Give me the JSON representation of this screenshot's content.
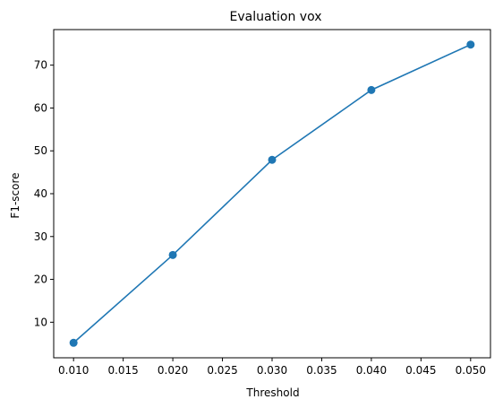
{
  "chart_data": {
    "type": "line",
    "title": "Evaluation vox",
    "xlabel": "Threshold",
    "ylabel": "F1-score",
    "x": [
      0.01,
      0.02,
      0.03,
      0.04,
      0.05
    ],
    "series": [
      {
        "values": [
          5.2,
          25.7,
          47.9,
          64.2,
          74.8
        ],
        "color": "#1f77b4",
        "marker": "circle"
      }
    ],
    "xlim": [
      0.008,
      0.052
    ],
    "ylim": [
      1.7,
      78.3
    ],
    "x_ticks": [
      "0.010",
      "0.015",
      "0.020",
      "0.025",
      "0.030",
      "0.035",
      "0.040",
      "0.045",
      "0.050"
    ],
    "y_ticks": [
      "10",
      "20",
      "30",
      "40",
      "50",
      "60",
      "70"
    ],
    "grid": false,
    "legend": "none"
  }
}
